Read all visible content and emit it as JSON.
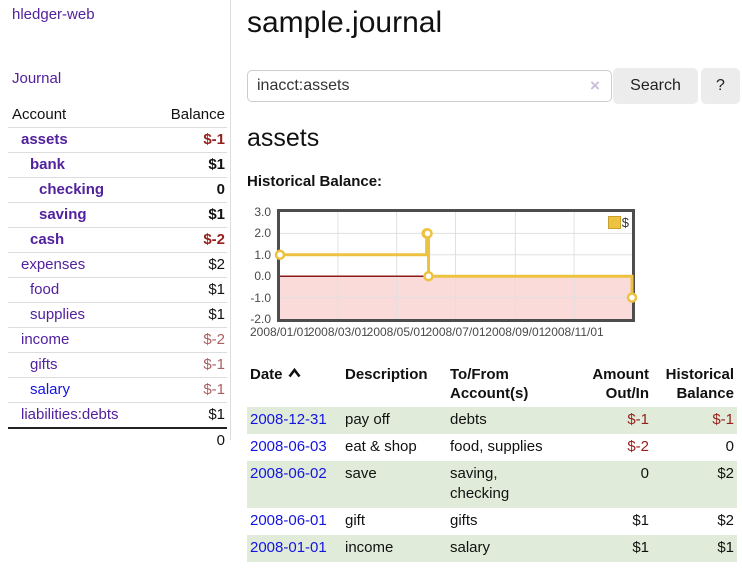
{
  "colors": {
    "link_purple": "#52219e",
    "link_blue": "#1414e0",
    "negative_strong": "#97201d",
    "negative_muted": "#aa6060",
    "row_stripe_green": "#e0ecd9",
    "chart_line": "#edc240",
    "chart_negative_fill": "#fbdada",
    "chart_zero_line": "#8b1a1a"
  },
  "sidebar": {
    "brand": "hledger-web",
    "journal_link": "Journal",
    "accounts_table": {
      "headers": [
        "Account",
        "Balance"
      ],
      "rows": [
        {
          "name": "assets",
          "depth": 1,
          "bold": true,
          "balance": "$-1",
          "balance_class": "neg"
        },
        {
          "name": "bank",
          "depth": 2,
          "bold": true,
          "balance": "$1",
          "balance_class": "pos"
        },
        {
          "name": "checking",
          "depth": 3,
          "bold": true,
          "balance": "0",
          "balance_class": "pos"
        },
        {
          "name": "saving",
          "depth": 3,
          "bold": true,
          "balance": "$1",
          "balance_class": "pos"
        },
        {
          "name": "cash",
          "depth": 2,
          "bold": true,
          "balance": "$-2",
          "balance_class": "neg"
        },
        {
          "name": "expenses",
          "depth": 1,
          "bold": false,
          "balance": "$2",
          "balance_class": "pos"
        },
        {
          "name": "food",
          "depth": 2,
          "bold": false,
          "balance": "$1",
          "balance_class": "pos"
        },
        {
          "name": "supplies",
          "depth": 2,
          "bold": false,
          "balance": "$1",
          "balance_class": "pos"
        },
        {
          "name": "income",
          "depth": 1,
          "bold": false,
          "balance": "$-2",
          "balance_class": "neg-muted"
        },
        {
          "name": "gifts",
          "depth": 2,
          "bold": false,
          "balance": "$-1",
          "balance_class": "neg-muted"
        },
        {
          "name": "salary",
          "depth": 2,
          "bold": false,
          "link_class": "unvisited",
          "balance": "$-1",
          "balance_class": "neg-muted"
        },
        {
          "name": "liabilities:debts",
          "depth": 1,
          "bold": false,
          "balance": "$1",
          "balance_class": "pos"
        }
      ],
      "total": "0"
    }
  },
  "header": {
    "title": "sample.journal"
  },
  "search": {
    "query": "inacct:assets",
    "clear_icon": "×",
    "button_label": "Search",
    "help_label": "?"
  },
  "account_page": {
    "title": "assets",
    "chart_label": "Historical Balance:"
  },
  "chart_data": {
    "type": "line",
    "title": "Historical Balance",
    "steps": true,
    "grid": true,
    "legend_position": "top-right",
    "legend": [
      {
        "label": "$",
        "color": "#edc240"
      }
    ],
    "x_unit": "day of 2008",
    "xlim": [
      0,
      365
    ],
    "ylim": [
      -2,
      3
    ],
    "series": [
      {
        "name": "$",
        "color": "#edc240",
        "points": [
          {
            "date": "2008-01-01",
            "day": 0,
            "value": 1.0
          },
          {
            "date": "2008-06-01",
            "day": 152,
            "value": 2.0
          },
          {
            "date": "2008-06-02",
            "day": 153,
            "value": 2.0
          },
          {
            "date": "2008-06-03",
            "day": 154,
            "value": 0.0
          },
          {
            "date": "2008-12-31",
            "day": 365,
            "value": -1.0
          }
        ]
      }
    ],
    "y_ticks": [
      {
        "value": 3,
        "label": "3.0"
      },
      {
        "value": 2,
        "label": "2.0"
      },
      {
        "value": 1,
        "label": "1.0"
      },
      {
        "value": 0,
        "label": "0.0"
      },
      {
        "value": -1,
        "label": "-1.0"
      },
      {
        "value": -2,
        "label": "-2.0"
      }
    ],
    "x_ticks": [
      {
        "day": 0,
        "label": "2008/01/01"
      },
      {
        "day": 60,
        "label": "2008/03/01"
      },
      {
        "day": 121,
        "label": "2008/05/01"
      },
      {
        "day": 182,
        "label": "2008/07/01"
      },
      {
        "day": 244,
        "label": "2008/09/01"
      },
      {
        "day": 305,
        "label": "2008/11/01"
      }
    ],
    "negative_region": {
      "from": -2,
      "to": 0,
      "fill": "#fbdada"
    },
    "zero_line_color": "#8b1a1a"
  },
  "register": {
    "columns": [
      {
        "label": "Date",
        "sort": "ascending",
        "align": "left"
      },
      {
        "label": "Description",
        "align": "left"
      },
      {
        "label": "To/From Account(s)",
        "align": "left"
      },
      {
        "label": "Amount Out/In",
        "align": "right"
      },
      {
        "label": "Historical Balance",
        "align": "right"
      }
    ],
    "rows": [
      {
        "date": "2008-12-31",
        "description": "pay off",
        "accounts": "debts",
        "amount": "$-1",
        "amount_class": "neg",
        "balance": "$-1",
        "balance_class": "neg"
      },
      {
        "date": "2008-06-03",
        "description": "eat & shop",
        "accounts": "food, supplies",
        "amount": "$-2",
        "amount_class": "neg",
        "balance": "0",
        "balance_class": "pos"
      },
      {
        "date": "2008-06-02",
        "description": "save",
        "accounts": "saving,\nchecking",
        "amount": "0",
        "amount_class": "pos",
        "balance": "$2",
        "balance_class": "pos"
      },
      {
        "date": "2008-06-01",
        "description": "gift",
        "accounts": "gifts",
        "amount": "$1",
        "amount_class": "pos",
        "balance": "$2",
        "balance_class": "pos"
      },
      {
        "date": "2008-01-01",
        "description": "income",
        "accounts": "salary",
        "amount": "$1",
        "amount_class": "pos",
        "balance": "$1",
        "balance_class": "pos"
      }
    ]
  }
}
